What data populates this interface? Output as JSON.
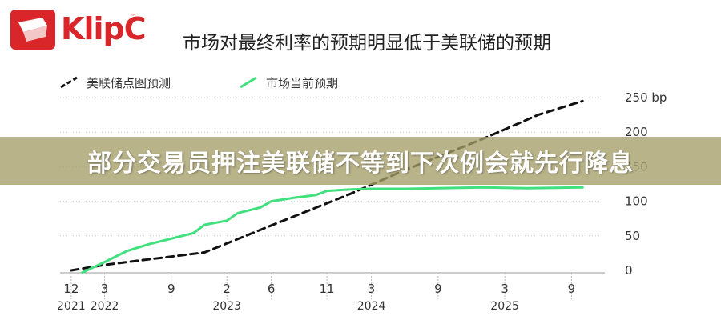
{
  "brand": {
    "name": "KlipC",
    "tm": "™",
    "logo_color": "#d9262b"
  },
  "banner": {
    "text": "部分交易员押注美联储不等到下次例会就先行降息"
  },
  "chart_data": {
    "type": "line",
    "title": "市场对最终利率的预期明显低于美联储的预期",
    "xlabel": "",
    "ylabel": "",
    "y_unit": "bp",
    "ylim": [
      0,
      250
    ],
    "y_ticks": [
      0,
      50,
      100,
      150,
      200,
      250
    ],
    "y_tick_labels": [
      "0",
      "50",
      "100",
      "150",
      "200",
      "250 bp"
    ],
    "grid": true,
    "legend_placement": "top-left",
    "x_ticks": [
      {
        "x": "2021-12",
        "label": "12"
      },
      {
        "x": "2022-03",
        "label": "3"
      },
      {
        "x": "2022-09",
        "label": "9"
      },
      {
        "x": "2023-02",
        "label": "2"
      },
      {
        "x": "2023-06",
        "label": "6"
      },
      {
        "x": "2023-11",
        "label": "11"
      },
      {
        "x": "2024-03",
        "label": "3"
      },
      {
        "x": "2024-09",
        "label": "9"
      },
      {
        "x": "2025-03",
        "label": "3"
      },
      {
        "x": "2025-09",
        "label": "9"
      }
    ],
    "year_labels": [
      {
        "x": "2021-12",
        "label": "2021"
      },
      {
        "x": "2022-03",
        "label": "2022"
      },
      {
        "x": "2023-02",
        "label": "2023"
      },
      {
        "x": "2024-03",
        "label": "2024"
      },
      {
        "x": "2025-03",
        "label": "2025"
      }
    ],
    "series": [
      {
        "name": "美联储点图预测",
        "style": "dashed",
        "color": "#111111",
        "points": [
          {
            "x": "2021-12",
            "y": 0
          },
          {
            "x": "2022-03",
            "y": 8
          },
          {
            "x": "2022-06",
            "y": 14
          },
          {
            "x": "2022-09",
            "y": 20
          },
          {
            "x": "2022-12",
            "y": 26
          },
          {
            "x": "2023-06",
            "y": 65
          },
          {
            "x": "2024-01",
            "y": 110
          },
          {
            "x": "2024-06",
            "y": 145
          },
          {
            "x": "2025-01",
            "y": 190
          },
          {
            "x": "2025-06",
            "y": 225
          },
          {
            "x": "2025-10",
            "y": 245
          }
        ]
      },
      {
        "name": "市场当前预期",
        "style": "solid",
        "color": "#3fe07d",
        "points": [
          {
            "x": "2022-01",
            "y": -3
          },
          {
            "x": "2022-03",
            "y": 12
          },
          {
            "x": "2022-05",
            "y": 28
          },
          {
            "x": "2022-07",
            "y": 38
          },
          {
            "x": "2022-09",
            "y": 46
          },
          {
            "x": "2022-11",
            "y": 54
          },
          {
            "x": "2022-12",
            "y": 66
          },
          {
            "x": "2023-02",
            "y": 72
          },
          {
            "x": "2023-03",
            "y": 83
          },
          {
            "x": "2023-05",
            "y": 91
          },
          {
            "x": "2023-06",
            "y": 100
          },
          {
            "x": "2023-08",
            "y": 105
          },
          {
            "x": "2023-10",
            "y": 109
          },
          {
            "x": "2023-11",
            "y": 115
          },
          {
            "x": "2024-01",
            "y": 117
          },
          {
            "x": "2024-03",
            "y": 118
          },
          {
            "x": "2024-06",
            "y": 118
          },
          {
            "x": "2024-09",
            "y": 119
          },
          {
            "x": "2025-01",
            "y": 120
          },
          {
            "x": "2025-05",
            "y": 119
          },
          {
            "x": "2025-10",
            "y": 120
          }
        ]
      }
    ]
  }
}
